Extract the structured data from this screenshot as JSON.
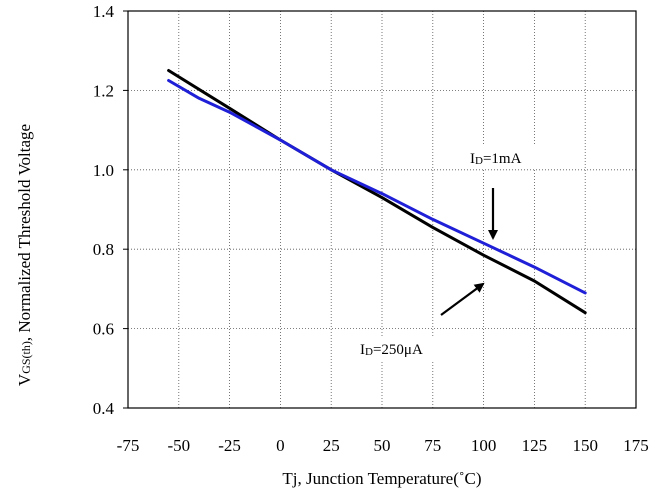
{
  "chart_data": {
    "type": "line",
    "title": "",
    "xlabel": "Tj, Junction Temperature(˚C)",
    "ylabel_main": "V",
    "ylabel_sub": "GS(th)",
    "ylabel_rest": ", Normalized Threshold Voltage",
    "xlim": [
      -75,
      175
    ],
    "ylim": [
      0.4,
      1.4
    ],
    "x_ticks": [
      -75,
      -50,
      -25,
      0,
      25,
      50,
      75,
      100,
      125,
      150,
      175
    ],
    "x_tick_labels": [
      "-75",
      "-50",
      "-25",
      "0",
      "25",
      "50",
      "75",
      "100",
      "125",
      "150",
      "175"
    ],
    "y_ticks": [
      0.4,
      0.6,
      0.8,
      1.0,
      1.2,
      1.4
    ],
    "y_tick_labels": [
      "0.4",
      "0.6",
      "0.8",
      "1.0",
      "1.2",
      "1.4"
    ],
    "grid": true,
    "series": [
      {
        "name": "ID=250μA",
        "color": "#000000",
        "x": [
          -55,
          -25,
          0,
          25,
          50,
          75,
          100,
          125,
          150
        ],
        "y": [
          1.25,
          1.155,
          1.075,
          1.0,
          0.93,
          0.855,
          0.785,
          0.72,
          0.64
        ]
      },
      {
        "name": "ID=1mA",
        "color": "#1f1fd8",
        "x": [
          -55,
          -40,
          -25,
          0,
          25,
          50,
          75,
          100,
          125,
          150
        ],
        "y": [
          1.225,
          1.18,
          1.145,
          1.075,
          1.0,
          0.94,
          0.875,
          0.815,
          0.755,
          0.69
        ]
      }
    ],
    "annotations": [
      {
        "label_main": "I",
        "label_sub": "D",
        "label_rest": "=1mA"
      },
      {
        "label_main": "I",
        "label_sub": "D",
        "label_rest": "=250μA"
      }
    ]
  }
}
